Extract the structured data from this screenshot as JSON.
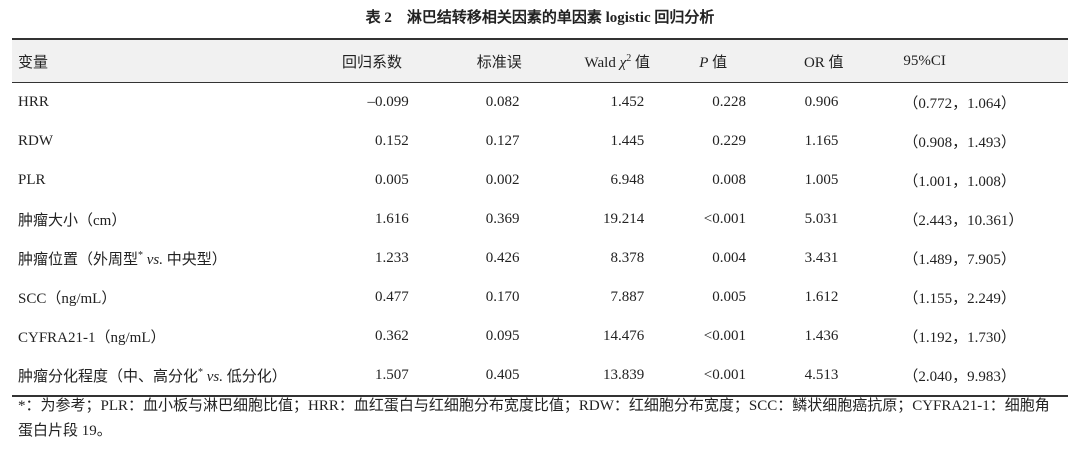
{
  "title": "表 2　淋巴结转移相关因素的单因素 logistic 回归分析",
  "table": {
    "header": [
      "变量",
      "回归系数",
      "标准误",
      [
        {
          "text": "Wald "
        },
        {
          "text": "χ",
          "format": "italic"
        },
        {
          "text": "2",
          "format": "sup"
        },
        {
          "text": " 值"
        }
      ],
      [
        {
          "text": "P",
          "format": "italic"
        },
        {
          "text": " 值"
        }
      ],
      "OR 值",
      "95%CI"
    ],
    "rows": [
      [
        "HRR",
        "–0.099",
        "0.082",
        "1.452",
        "0.228",
        "0.906",
        "（0.772，1.064）"
      ],
      [
        "RDW",
        "0.152",
        "0.127",
        "1.445",
        "0.229",
        "1.165",
        "（0.908，1.493）"
      ],
      [
        "PLR",
        "0.005",
        "0.002",
        "6.948",
        "0.008",
        "1.005",
        "（1.001，1.008）"
      ],
      [
        "肿瘤大小（cm）",
        "1.616",
        "0.369",
        "19.214",
        "<0.001",
        "5.031",
        "（2.443，10.361）"
      ],
      [
        [
          {
            "text": "肿瘤位置（外周型"
          },
          {
            "text": "*",
            "format": "sup"
          },
          {
            "text": " "
          },
          {
            "text": "vs.",
            "format": "italic"
          },
          {
            "text": " 中央型）"
          }
        ],
        "1.233",
        "0.426",
        "8.378",
        "0.004",
        "3.431",
        "（1.489，7.905）"
      ],
      [
        "SCC（ng/mL）",
        "0.477",
        "0.170",
        "7.887",
        "0.005",
        "1.612",
        "（1.155，2.249）"
      ],
      [
        "CYFRA21-1（ng/mL）",
        "0.362",
        "0.095",
        "14.476",
        "<0.001",
        "1.436",
        "（1.192，1.730）"
      ],
      [
        [
          {
            "text": "肿瘤分化程度（中、高分化"
          },
          {
            "text": "*",
            "format": "sup"
          },
          {
            "text": " "
          },
          {
            "text": "vs.",
            "format": "italic"
          },
          {
            "text": " 低分化）"
          }
        ],
        "1.507",
        "0.405",
        "13.839",
        "<0.001",
        "4.513",
        "（2.040，9.983）"
      ]
    ]
  },
  "footnote": "*：为参考；PLR：血小板与淋巴细胞比值；HRR：血红蛋白与红细胞分布宽度比值；RDW：红细胞分布宽度；SCC：鳞状细胞癌抗原；CYFRA21-1：细胞角蛋白片段 19。"
}
